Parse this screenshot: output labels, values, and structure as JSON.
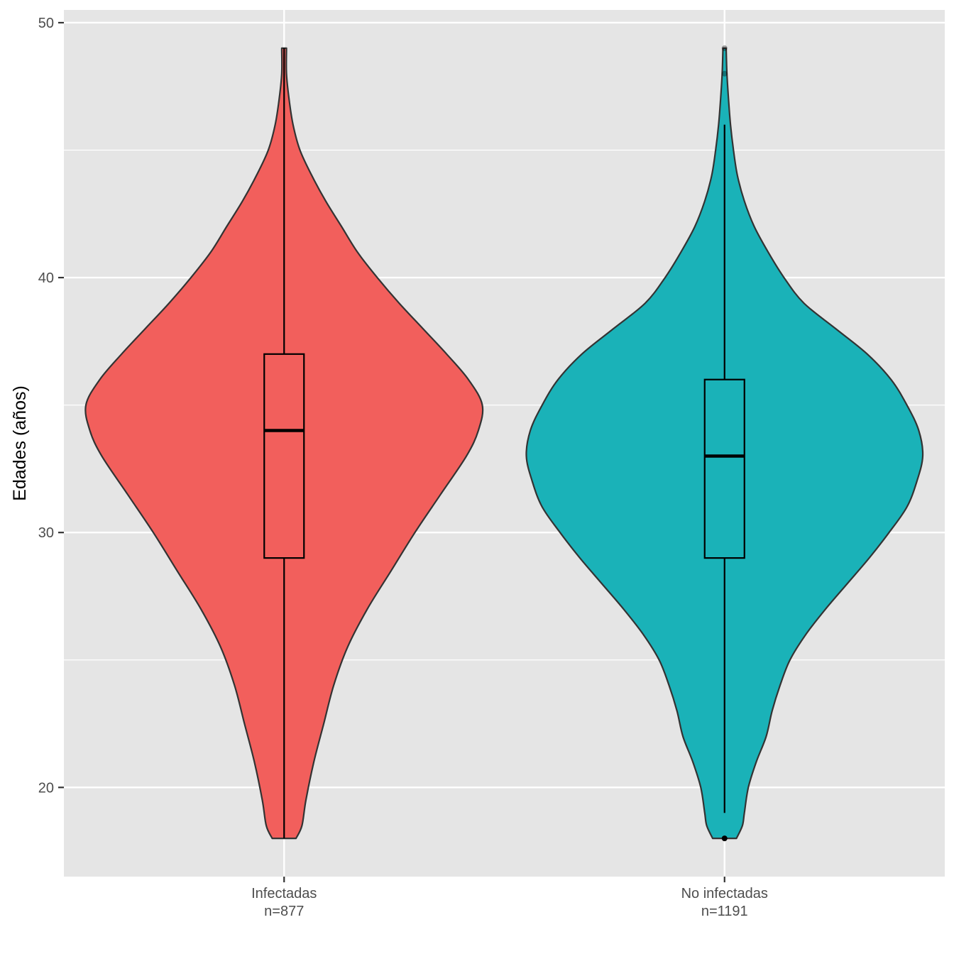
{
  "chart_data": {
    "type": "violin",
    "xlabel": "",
    "ylabel": "Edades (años)",
    "ylim": [
      16.5,
      50.5
    ],
    "y_ticks": [
      20,
      30,
      40,
      50
    ],
    "y_minor_ticks": [
      25,
      35,
      45
    ],
    "grid": true,
    "background": "#e5e5e5",
    "categories": [
      {
        "label": "Infectadas",
        "n_label": "n=877",
        "color": "#f25f5c",
        "box": {
          "q1": 29,
          "median": 34,
          "q3": 37,
          "whisker_low": 18,
          "whisker_high": 49
        },
        "outliers": [],
        "density_profile": [
          [
            18,
            0.06
          ],
          [
            18.5,
            0.09
          ],
          [
            19.5,
            0.11
          ],
          [
            21,
            0.15
          ],
          [
            22.5,
            0.2
          ],
          [
            24,
            0.25
          ],
          [
            25.5,
            0.32
          ],
          [
            27,
            0.42
          ],
          [
            28.5,
            0.54
          ],
          [
            30,
            0.66
          ],
          [
            31.5,
            0.79
          ],
          [
            33,
            0.92
          ],
          [
            34,
            0.98
          ],
          [
            35,
            1.0
          ],
          [
            36,
            0.93
          ],
          [
            37,
            0.82
          ],
          [
            38,
            0.7
          ],
          [
            39,
            0.58
          ],
          [
            40,
            0.47
          ],
          [
            41,
            0.37
          ],
          [
            42,
            0.29
          ],
          [
            43,
            0.21
          ],
          [
            44,
            0.14
          ],
          [
            45,
            0.08
          ],
          [
            46,
            0.045
          ],
          [
            47,
            0.025
          ],
          [
            48,
            0.012
          ],
          [
            49,
            0.012
          ]
        ]
      },
      {
        "label": "No infectadas",
        "n_label": "n=1191",
        "color": "#1ab2b8",
        "box": {
          "q1": 29,
          "median": 33,
          "q3": 36,
          "whisker_low": 19,
          "whisker_high": 46
        },
        "outliers": [
          18,
          48,
          49
        ],
        "density_profile": [
          [
            18,
            0.06
          ],
          [
            18.5,
            0.09
          ],
          [
            19,
            0.1
          ],
          [
            20,
            0.12
          ],
          [
            21,
            0.16
          ],
          [
            22,
            0.21
          ],
          [
            23,
            0.24
          ],
          [
            24,
            0.28
          ],
          [
            25,
            0.33
          ],
          [
            26,
            0.41
          ],
          [
            27,
            0.51
          ],
          [
            28,
            0.62
          ],
          [
            29,
            0.73
          ],
          [
            30,
            0.83
          ],
          [
            31,
            0.92
          ],
          [
            32,
            0.97
          ],
          [
            33,
            1.0
          ],
          [
            34,
            0.98
          ],
          [
            35,
            0.92
          ],
          [
            36,
            0.84
          ],
          [
            37,
            0.72
          ],
          [
            38,
            0.56
          ],
          [
            39,
            0.4
          ],
          [
            40,
            0.3
          ],
          [
            41,
            0.22
          ],
          [
            42,
            0.15
          ],
          [
            43,
            0.1
          ],
          [
            44,
            0.065
          ],
          [
            45,
            0.045
          ],
          [
            46,
            0.03
          ],
          [
            47,
            0.02
          ],
          [
            48,
            0.012
          ],
          [
            49,
            0.008
          ]
        ]
      }
    ]
  }
}
